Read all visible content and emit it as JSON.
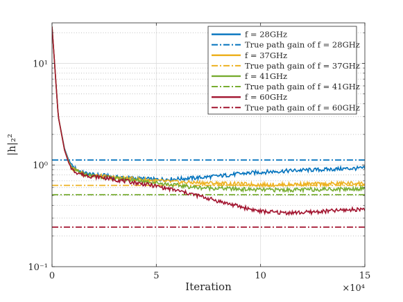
{
  "chart_data": {
    "type": "line",
    "title": "",
    "xlabel": "Iteration",
    "ylabel": "|h|₂²",
    "x_exponent_label": "×10⁴",
    "x_scale_factor": 10000,
    "xlim": [
      0,
      150000
    ],
    "ylim": [
      0.1,
      25
    ],
    "yscale": "log",
    "grid": true,
    "legend_position": "top-right",
    "x_ticks": [
      0,
      50000,
      100000,
      150000
    ],
    "x_tick_labels": [
      "0",
      "5",
      "10",
      "15"
    ],
    "y_ticks": [
      0.1,
      1,
      10
    ],
    "y_tick_labels": [
      "10⁻¹",
      "10⁰",
      "10¹"
    ],
    "series": [
      {
        "name": "f = 28GHz",
        "style": "solid",
        "color": "#0072BD",
        "x": [
          0,
          3000,
          6000,
          8000,
          10000,
          15000,
          20000,
          25000,
          30000,
          40000,
          50000,
          60000,
          70000,
          80000,
          90000,
          100000,
          110000,
          120000,
          130000,
          140000,
          150000
        ],
        "values": [
          23,
          3.0,
          1.45,
          1.12,
          0.95,
          0.84,
          0.8,
          0.79,
          0.76,
          0.74,
          0.72,
          0.73,
          0.75,
          0.78,
          0.82,
          0.85,
          0.87,
          0.89,
          0.9,
          0.92,
          0.93
        ]
      },
      {
        "name": "True path gain of f = 28GHz",
        "style": "dashdot",
        "color": "#0072BD",
        "x": [
          0,
          150000
        ],
        "values": [
          1.12,
          1.12
        ]
      },
      {
        "name": "f = 37GHz",
        "style": "solid",
        "color": "#EDB120",
        "x": [
          0,
          3000,
          6000,
          8000,
          10000,
          15000,
          20000,
          25000,
          30000,
          40000,
          50000,
          60000,
          70000,
          80000,
          90000,
          100000,
          110000,
          120000,
          130000,
          140000,
          150000
        ],
        "values": [
          23,
          3.0,
          1.42,
          1.08,
          0.92,
          0.82,
          0.79,
          0.77,
          0.75,
          0.73,
          0.7,
          0.68,
          0.67,
          0.66,
          0.65,
          0.64,
          0.64,
          0.65,
          0.65,
          0.66,
          0.66
        ]
      },
      {
        "name": "True path gain of f = 37GHz",
        "style": "dashdot",
        "color": "#EDB120",
        "x": [
          0,
          150000
        ],
        "values": [
          0.63,
          0.63
        ]
      },
      {
        "name": "f = 41GHz",
        "style": "solid",
        "color": "#77AC30",
        "x": [
          0,
          3000,
          6000,
          8000,
          10000,
          15000,
          20000,
          25000,
          30000,
          40000,
          50000,
          60000,
          70000,
          80000,
          90000,
          100000,
          110000,
          120000,
          130000,
          140000,
          150000
        ],
        "values": [
          23,
          3.0,
          1.4,
          1.06,
          0.9,
          0.81,
          0.78,
          0.76,
          0.74,
          0.71,
          0.67,
          0.63,
          0.6,
          0.59,
          0.58,
          0.57,
          0.57,
          0.57,
          0.58,
          0.58,
          0.59
        ]
      },
      {
        "name": "True path gain of f = 41GHz",
        "style": "dashdot",
        "color": "#77AC30",
        "x": [
          0,
          150000
        ],
        "values": [
          0.51,
          0.51
        ]
      },
      {
        "name": "f = 60GHz",
        "style": "solid",
        "color": "#A2142F",
        "x": [
          0,
          3000,
          6000,
          8000,
          10000,
          15000,
          20000,
          25000,
          30000,
          40000,
          50000,
          60000,
          70000,
          80000,
          90000,
          100000,
          110000,
          120000,
          130000,
          140000,
          150000
        ],
        "values": [
          23,
          3.0,
          1.4,
          1.05,
          0.88,
          0.8,
          0.77,
          0.75,
          0.72,
          0.67,
          0.62,
          0.56,
          0.5,
          0.44,
          0.39,
          0.35,
          0.34,
          0.34,
          0.35,
          0.36,
          0.37
        ]
      },
      {
        "name": "True path gain of f = 60GHz",
        "style": "dashdot",
        "color": "#A2142F",
        "x": [
          0,
          150000
        ],
        "values": [
          0.245,
          0.245
        ]
      }
    ]
  }
}
